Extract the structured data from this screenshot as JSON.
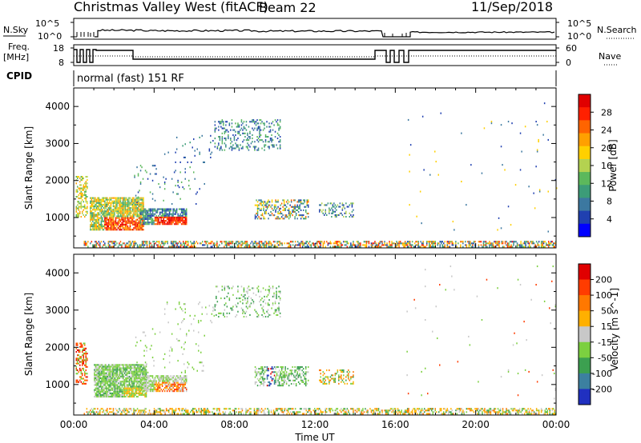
{
  "header": {
    "title": "Christmas Valley West (fitACF)",
    "beam": "Beam 22",
    "date": "11/Sep/2018"
  },
  "strip": {
    "nsky_label": "N.Sky",
    "nsky_ticks": [
      "10^5",
      "10^0"
    ],
    "nsearch_label": "N.Search",
    "nsearch_ticks": [
      "10^5",
      "10^0"
    ],
    "freq_label": "Freq.",
    "freq_unit": "[MHz]",
    "freq_ticks": [
      "18",
      "8"
    ],
    "nave_label": "Nave",
    "nave_ticks": [
      "60",
      "0"
    ],
    "cpid_label": "CPID",
    "cpid_value": "normal (fast) 151 RF"
  },
  "chart_data": [
    {
      "type": "heatmap",
      "panel": "power",
      "ylabel": "Slant Range [km]",
      "yticks": [
        "4000",
        "3000",
        "2000",
        "1000"
      ],
      "ylim": [
        180,
        4500
      ],
      "xlim": [
        0,
        24
      ],
      "colorbar_label": "Power [dB]",
      "colorbar_ticks": [
        "28",
        "24",
        "20",
        "16",
        "12",
        "8",
        "4"
      ],
      "colors": [
        "#0000ff",
        "#2040b0",
        "#3c78a0",
        "#3c9c78",
        "#5cb85c",
        "#b4d250",
        "#ffd000",
        "#ffa000",
        "#ff6400",
        "#ff2000",
        "#e00000"
      ]
    },
    {
      "type": "heatmap",
      "panel": "velocity",
      "ylabel": "Slant Range [km]",
      "yticks": [
        "4000",
        "3000",
        "2000",
        "1000"
      ],
      "ylim": [
        180,
        4500
      ],
      "xlim": [
        0,
        24
      ],
      "colorbar_label": "Velocity [m s^-1]",
      "colorbar_ticks": [
        "200",
        "100",
        "50",
        "15",
        "-15",
        "-50",
        "-100",
        "-200"
      ],
      "colors": [
        "#2030c0",
        "#3c80a0",
        "#3ca050",
        "#7cd040",
        "#c8c8c8",
        "#ffb000",
        "#ff7800",
        "#ff3c00",
        "#e00000"
      ]
    }
  ],
  "xaxis": {
    "ticks": [
      "00:00",
      "04:00",
      "08:00",
      "12:00",
      "16:00",
      "20:00",
      "00:00"
    ],
    "label": "Time UT"
  }
}
